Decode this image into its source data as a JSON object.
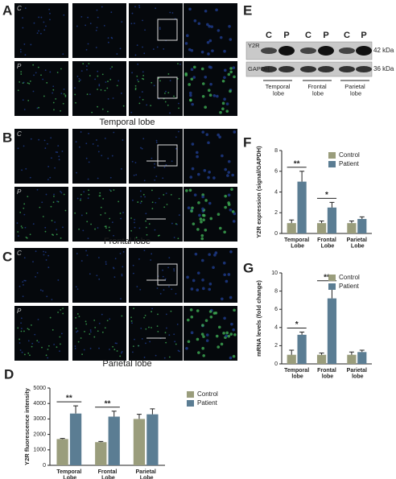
{
  "panel_labels": [
    "A",
    "B",
    "C",
    "D",
    "E",
    "F",
    "G"
  ],
  "microscopy": {
    "regions": [
      "Temporal lobe",
      "Frontal lobe",
      "Parietal lobe"
    ],
    "row_labels": [
      "C",
      "P"
    ]
  },
  "western_blot": {
    "lanes": [
      "C",
      "P",
      "C",
      "P",
      "C",
      "P"
    ],
    "proteins": [
      "Y2R",
      "GAPDH"
    ],
    "sizes": [
      "42 kDa",
      "36 kDa"
    ],
    "groups": [
      "Temporal lobe",
      "Frontal lobe",
      "Parietal lobe"
    ]
  },
  "chart_data": [
    {
      "type": "bar",
      "ylabel": "Y2R fluorescence intensity",
      "categories": [
        "Temporal Lobe",
        "Frontal Lobe",
        "Parietal Lobe"
      ],
      "series": [
        {
          "name": "Control",
          "color": "#9a9d7c",
          "values": [
            1700,
            1500,
            3000
          ],
          "errors": [
            40,
            40,
            300
          ]
        },
        {
          "name": "Patient",
          "color": "#5b7d93",
          "values": [
            3350,
            3150,
            3300
          ],
          "errors": [
            500,
            350,
            350
          ]
        }
      ],
      "significance": [
        "**",
        "**",
        null
      ],
      "ylim": [
        0,
        5000
      ],
      "yticks": [
        0,
        1000,
        2000,
        3000,
        4000,
        5000
      ]
    },
    {
      "type": "bar",
      "ylabel": "Y2R expression (signal/GAPDH)",
      "categories": [
        "Temporal Lobe",
        "Frontal Lobe",
        "Parietal Lobe"
      ],
      "series": [
        {
          "name": "Control",
          "color": "#9a9d7c",
          "values": [
            1.0,
            1.0,
            1.0
          ],
          "errors": [
            0.3,
            0.2,
            0.2
          ]
        },
        {
          "name": "Patient",
          "color": "#5b7d93",
          "values": [
            5.0,
            2.5,
            1.4
          ],
          "errors": [
            1.0,
            0.5,
            0.2
          ]
        }
      ],
      "significance": [
        "**",
        "*",
        null
      ],
      "ylim": [
        0,
        8
      ],
      "yticks": [
        0,
        2,
        4,
        6,
        8
      ]
    },
    {
      "type": "bar",
      "ylabel": "mRNA levels (fold change)",
      "categories": [
        "Temporal lobe",
        "Frontal lobe",
        "Parietal lobe"
      ],
      "series": [
        {
          "name": "Control",
          "color": "#9a9d7c",
          "values": [
            1.0,
            1.0,
            1.0
          ],
          "errors": [
            0.5,
            0.2,
            0.3
          ]
        },
        {
          "name": "Patient",
          "color": "#5b7d93",
          "values": [
            3.2,
            7.2,
            1.3
          ],
          "errors": [
            0.3,
            1.5,
            0.2
          ]
        }
      ],
      "significance": [
        "*",
        "**",
        null
      ],
      "ylim": [
        0,
        10
      ],
      "yticks": [
        0,
        2,
        4,
        6,
        8,
        10
      ]
    }
  ]
}
